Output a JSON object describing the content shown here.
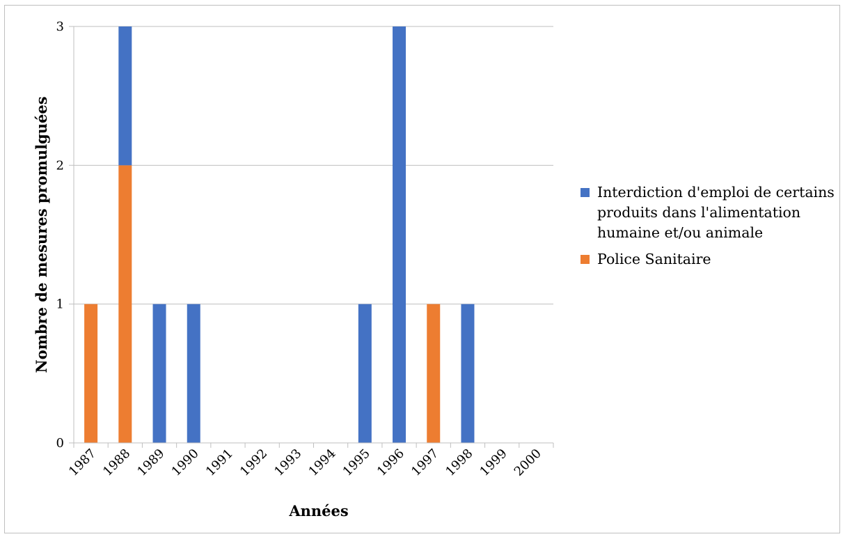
{
  "chart_data": {
    "type": "bar",
    "stacked": true,
    "title": "",
    "xlabel": "Années",
    "ylabel": "Nombre de mesures promulguées",
    "categories": [
      "1987",
      "1988",
      "1989",
      "1990",
      "1991",
      "1992",
      "1993",
      "1994",
      "1995",
      "1996",
      "1997",
      "1998",
      "1999",
      "2000"
    ],
    "series": [
      {
        "name": "Police Sanitaire",
        "color": "#ed7d31",
        "values": [
          1,
          2,
          0,
          0,
          0,
          0,
          0,
          0,
          0,
          0,
          1,
          0,
          0,
          0
        ]
      },
      {
        "name": "Interdiction d'emploi de certains produits dans l'alimentation humaine et/ou animale",
        "color": "#4472c4",
        "values": [
          0,
          1,
          1,
          1,
          0,
          0,
          0,
          0,
          1,
          3,
          0,
          1,
          0,
          0
        ]
      }
    ],
    "ylim": [
      0,
      3
    ],
    "yticks": [
      "0",
      "1",
      "2",
      "3"
    ],
    "grid": true,
    "legend_position": "right",
    "legend_order": [
      1,
      0
    ]
  }
}
